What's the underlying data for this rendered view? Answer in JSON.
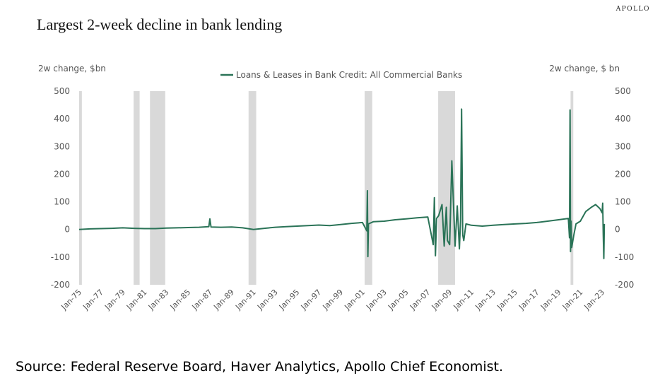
{
  "header": {
    "brand": "APOLLO",
    "title": "Largest 2-week decline in bank lending"
  },
  "footer": {
    "source": "Source: Federal Reserve Board, Haver Analytics, Apollo Chief Economist."
  },
  "chart_data": {
    "type": "line",
    "title": "Largest 2-week decline in bank lending",
    "ylabel_left": "2w change, $bn",
    "ylabel_right": "2w change, $ bn",
    "ylim": [
      -200,
      500
    ],
    "yticks": [
      500,
      400,
      300,
      200,
      100,
      0,
      -100,
      -200
    ],
    "xlim": [
      1975.0,
      2023.25
    ],
    "xticks": [
      "Jan-75",
      "Jan-77",
      "Jan-79",
      "Jan-81",
      "Jan-83",
      "Jan-85",
      "Jan-87",
      "Jan-89",
      "Jan-91",
      "Jan-93",
      "Jan-95",
      "Jan-97",
      "Jan-99",
      "Jan-01",
      "Jan-03",
      "Jan-05",
      "Jan-07",
      "Jan-09",
      "Jan-11",
      "Jan-13",
      "Jan-15",
      "Jan-17",
      "Jan-19",
      "Jan-21",
      "Jan-23"
    ],
    "grid": false,
    "legend_position": "top-center",
    "recession_shading_color": "#d9d9d9",
    "recessions": [
      [
        1975.0,
        1975.25
      ],
      [
        1980.0,
        1980.55
      ],
      [
        1981.5,
        1982.9
      ],
      [
        1990.55,
        1991.25
      ],
      [
        2001.2,
        2001.9
      ],
      [
        2007.95,
        2009.5
      ],
      [
        2020.1,
        2020.35
      ]
    ],
    "series": [
      {
        "name": "Loans & Leases in Bank Credit: All Commercial Banks",
        "color": "#2a7357",
        "x": [
          1975.0,
          1976.0,
          1977.0,
          1978.0,
          1979.0,
          1980.0,
          1981.0,
          1982.0,
          1983.0,
          1984.0,
          1985.0,
          1986.0,
          1986.9,
          1987.0,
          1987.1,
          1988.0,
          1989.0,
          1990.0,
          1991.0,
          1992.0,
          1993.0,
          1994.0,
          1995.0,
          1996.0,
          1997.0,
          1998.0,
          1999.0,
          2000.0,
          2001.0,
          2001.4,
          2001.45,
          2001.5,
          2001.55,
          2002.0,
          2003.0,
          2004.0,
          2005.0,
          2006.0,
          2007.0,
          2007.5,
          2007.6,
          2007.7,
          2007.8,
          2008.0,
          2008.3,
          2008.5,
          2008.7,
          2008.8,
          2009.0,
          2009.2,
          2009.5,
          2009.7,
          2009.9,
          2010.0,
          2010.1,
          2010.2,
          2010.3,
          2010.5,
          2011.0,
          2012.0,
          2013.0,
          2014.0,
          2015.0,
          2016.0,
          2017.0,
          2018.0,
          2019.0,
          2019.9,
          2020.0,
          2020.05,
          2020.1,
          2020.15,
          2020.2,
          2020.4,
          2020.6,
          2021.0,
          2021.5,
          2022.0,
          2022.4,
          2022.8,
          2023.0,
          2023.05,
          2023.1,
          2023.15,
          2023.2
        ],
        "values": [
          0,
          2,
          3,
          4,
          6,
          4,
          3,
          3,
          5,
          6,
          7,
          8,
          10,
          38,
          9,
          8,
          9,
          6,
          0,
          4,
          8,
          10,
          12,
          14,
          16,
          14,
          18,
          22,
          25,
          -5,
          140,
          -98,
          20,
          28,
          30,
          35,
          38,
          42,
          45,
          -55,
          115,
          -95,
          40,
          50,
          90,
          -60,
          80,
          -40,
          -55,
          248,
          -60,
          85,
          -70,
          30,
          435,
          -20,
          -40,
          20,
          15,
          12,
          15,
          18,
          20,
          22,
          25,
          30,
          35,
          40,
          -30,
          432,
          -80,
          30,
          -65,
          -20,
          20,
          30,
          65,
          80,
          90,
          75,
          60,
          95,
          -20,
          -105,
          20
        ]
      }
    ]
  }
}
